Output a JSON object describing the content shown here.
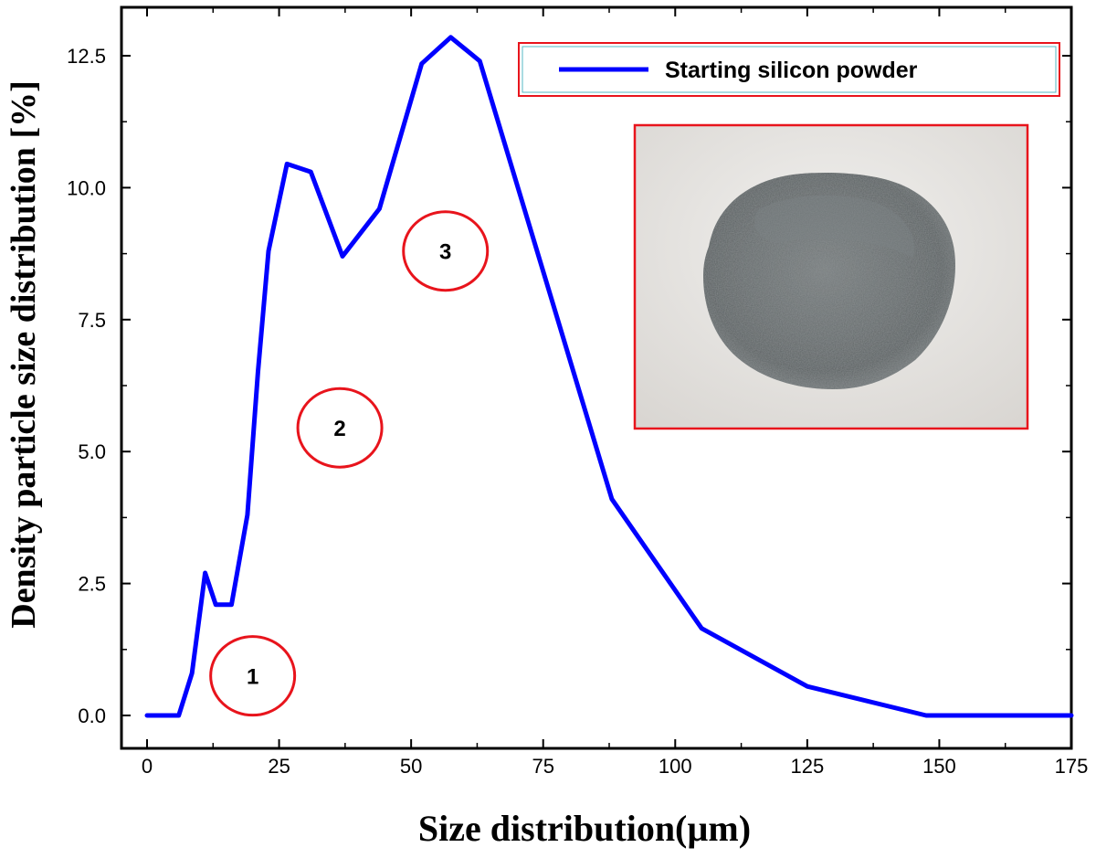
{
  "chart_data": {
    "type": "line",
    "title": "",
    "xlabel": "Size distribution(µm)",
    "ylabel": "Density particle size distribution [%]",
    "xlim": [
      0,
      175
    ],
    "ylim": [
      0,
      12.5
    ],
    "x_ticks": [
      0,
      25,
      50,
      75,
      100,
      125,
      150,
      175
    ],
    "x_tick_labels": [
      "0",
      "25",
      "50",
      "75",
      "100",
      "125",
      "150",
      "175"
    ],
    "y_ticks": [
      0,
      2.5,
      5,
      7.5,
      10,
      12.5
    ],
    "y_tick_labels": [
      "0.0",
      "2.5",
      "5.0",
      "7.5",
      "10.0",
      "12.5"
    ],
    "grid": false,
    "legend_position": "top-right",
    "series": [
      {
        "name": "Starting silicon powder",
        "color": "#0000ff",
        "x": [
          0,
          6,
          8.5,
          11,
          13,
          16,
          19,
          21,
          23,
          26.5,
          31,
          37,
          44,
          52,
          57.5,
          63,
          88,
          105,
          125,
          147.5,
          175
        ],
        "y": [
          0,
          0,
          0.8,
          2.7,
          2.1,
          2.1,
          3.8,
          6.5,
          8.8,
          10.45,
          10.3,
          8.7,
          9.6,
          12.35,
          12.85,
          12.4,
          4.1,
          1.65,
          0.55,
          0,
          0
        ]
      }
    ],
    "annotations": [
      {
        "label": "1",
        "x": 20,
        "y": 0.75
      },
      {
        "label": "2",
        "x": 36.5,
        "y": 5.45
      },
      {
        "label": "3",
        "x": 56.5,
        "y": 8.8
      }
    ],
    "annotation_circle_color": "#e8141c",
    "inset_frame_color": "#e8141c",
    "legend_frame_color": "#e8141c"
  }
}
